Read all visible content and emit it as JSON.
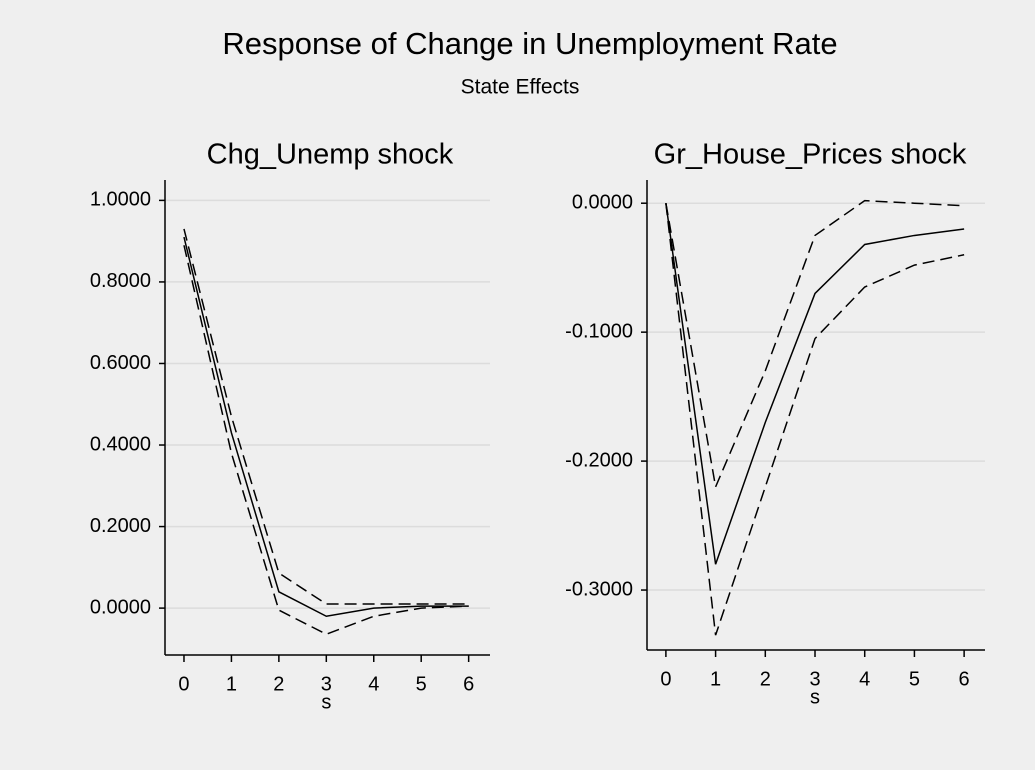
{
  "title": "Response of Change in Unemployment Rate",
  "subtitle": "State Effects",
  "chart_data": [
    {
      "type": "line",
      "title": "Chg_Unemp shock",
      "xlabel": "s",
      "x": [
        0,
        1,
        2,
        3,
        4,
        5,
        6
      ],
      "series": [
        {
          "color": "#000000",
          "line_style": "solid",
          "values": [
            0.91,
            0.43,
            0.04,
            -0.02,
            0.0,
            0.005,
            0.005
          ]
        },
        {
          "color": "#000000",
          "line_style": "dashed",
          "values": [
            0.93,
            0.47,
            0.086,
            0.01,
            0.01,
            0.01,
            0.01
          ]
        },
        {
          "color": "#000000",
          "line_style": "dashed",
          "values": [
            0.89,
            0.38,
            -0.005,
            -0.064,
            -0.02,
            0.0,
            0.005
          ]
        }
      ],
      "xlim": [
        -0.4,
        6.45
      ],
      "xticks": [
        0,
        1,
        2,
        3,
        4,
        5,
        6
      ],
      "ylim": [
        -0.115,
        1.05
      ],
      "yticks": [
        {
          "value": 0,
          "label": "0.0000"
        },
        {
          "value": 0.2,
          "label": "0.2000"
        },
        {
          "value": 0.4,
          "label": "0.4000"
        },
        {
          "value": 0.6,
          "label": "0.6000"
        },
        {
          "value": 0.8,
          "label": "0.8000"
        },
        {
          "value": 1,
          "label": "1.0000"
        }
      ],
      "grid": true
    },
    {
      "type": "line",
      "title": "Gr_House_Prices shock",
      "xlabel": "s",
      "x": [
        0,
        1,
        2,
        3,
        4,
        5,
        6
      ],
      "series": [
        {
          "color": "#000000",
          "line_style": "solid",
          "values": [
            0,
            -0.28,
            -0.17,
            -0.07,
            -0.032,
            -0.025,
            -0.02
          ]
        },
        {
          "color": "#000000",
          "line_style": "dashed",
          "values": [
            0,
            -0.22,
            -0.13,
            -0.025,
            0.002,
            0.0,
            -0.002
          ]
        },
        {
          "color": "#000000",
          "line_style": "dashed",
          "values": [
            0,
            -0.335,
            -0.22,
            -0.105,
            -0.065,
            -0.048,
            -0.04
          ]
        }
      ],
      "xlim": [
        -0.38,
        6.42
      ],
      "xticks": [
        0,
        1,
        2,
        3,
        4,
        5,
        6
      ],
      "ylim": [
        -0.3465,
        0.018
      ],
      "yticks": [
        {
          "value": -0.3,
          "label": "-0.3000"
        },
        {
          "value": -0.2,
          "label": "-0.2000"
        },
        {
          "value": -0.1,
          "label": "-0.1000"
        },
        {
          "value": 0,
          "label": "0.0000"
        }
      ],
      "grid": true
    }
  ]
}
